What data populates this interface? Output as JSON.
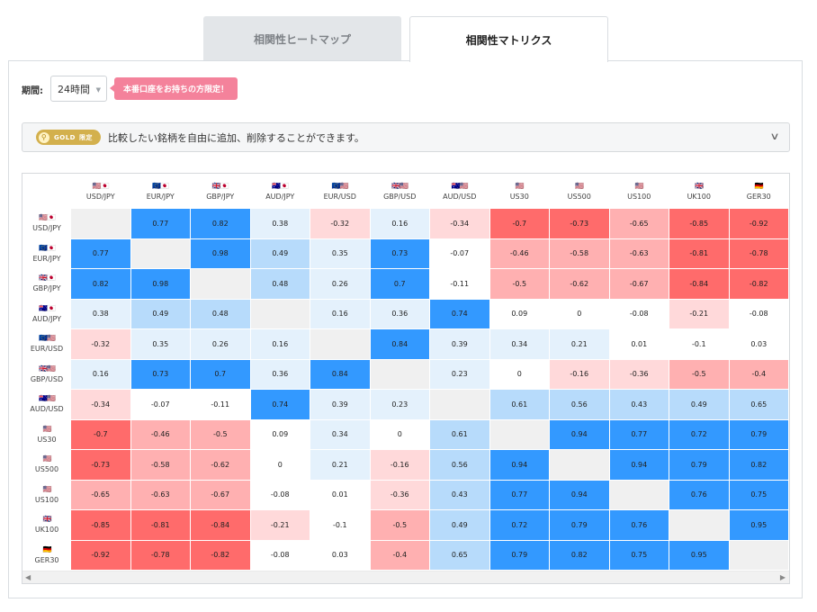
{
  "tabs": [
    {
      "label": "相関性ヒートマップ"
    },
    {
      "label": "相関性マトリクス"
    }
  ],
  "filter": {
    "period_label": "期間:",
    "period_value": "24時間",
    "promo_badge": "本番口座をお持ちの方限定！"
  },
  "gold_notice": {
    "badge_text": "GOLD",
    "badge_limited": "限定",
    "text": "比較したい銘柄を自由に追加、削除することができます。"
  },
  "colors": {
    "positive_strong": "#3399ff",
    "positive_mid": "#b7dbfb",
    "positive_light": "#e4f1fc",
    "neutral": "#ffffff",
    "negative_light": "#ffd9da",
    "negative_mid": "#ffb0b1",
    "negative_strong": "#ff6b6b",
    "diagonal": "#f0f0f0"
  },
  "matrix": {
    "symbols": [
      {
        "label": "USD/JPY",
        "flags": "🇺🇸🇯🇵"
      },
      {
        "label": "EUR/JPY",
        "flags": "🇪🇺🇯🇵"
      },
      {
        "label": "GBP/JPY",
        "flags": "🇬🇧🇯🇵"
      },
      {
        "label": "AUD/JPY",
        "flags": "🇦🇺🇯🇵"
      },
      {
        "label": "EUR/USD",
        "flags": "🇪🇺🇺🇸"
      },
      {
        "label": "GBP/USD",
        "flags": "🇬🇧🇺🇸"
      },
      {
        "label": "AUD/USD",
        "flags": "🇦🇺🇺🇸"
      },
      {
        "label": "US30",
        "flags": "🇺🇸"
      },
      {
        "label": "US500",
        "flags": "🇺🇸"
      },
      {
        "label": "US100",
        "flags": "🇺🇸"
      },
      {
        "label": "UK100",
        "flags": "🇬🇧"
      },
      {
        "label": "GER30",
        "flags": "🇩🇪"
      }
    ],
    "values": [
      [
        null,
        0.77,
        0.82,
        0.38,
        -0.32,
        0.16,
        -0.34,
        -0.7,
        -0.73,
        -0.65,
        -0.85,
        -0.92
      ],
      [
        0.77,
        null,
        0.98,
        0.49,
        0.35,
        0.73,
        -0.07,
        -0.46,
        -0.58,
        -0.63,
        -0.81,
        -0.78
      ],
      [
        0.82,
        0.98,
        null,
        0.48,
        0.26,
        0.7,
        -0.11,
        -0.5,
        -0.62,
        -0.67,
        -0.84,
        -0.82
      ],
      [
        0.38,
        0.49,
        0.48,
        null,
        0.16,
        0.36,
        0.74,
        0.09,
        0,
        -0.08,
        -0.21,
        -0.08
      ],
      [
        -0.32,
        0.35,
        0.26,
        0.16,
        null,
        0.84,
        0.39,
        0.34,
        0.21,
        0.01,
        -0.1,
        0.03
      ],
      [
        0.16,
        0.73,
        0.7,
        0.36,
        0.84,
        null,
        0.23,
        0,
        -0.16,
        -0.36,
        -0.5,
        -0.4
      ],
      [
        -0.34,
        -0.07,
        -0.11,
        0.74,
        0.39,
        0.23,
        null,
        0.61,
        0.56,
        0.43,
        0.49,
        0.65
      ],
      [
        -0.7,
        -0.46,
        -0.5,
        0.09,
        0.34,
        0,
        0.61,
        null,
        0.94,
        0.77,
        0.72,
        0.79
      ],
      [
        -0.73,
        -0.58,
        -0.62,
        0,
        0.21,
        -0.16,
        0.56,
        0.94,
        null,
        0.94,
        0.79,
        0.82
      ],
      [
        -0.65,
        -0.63,
        -0.67,
        -0.08,
        0.01,
        -0.36,
        0.43,
        0.77,
        0.94,
        null,
        0.76,
        0.75
      ],
      [
        -0.85,
        -0.81,
        -0.84,
        -0.21,
        -0.1,
        -0.5,
        0.49,
        0.72,
        0.79,
        0.76,
        null,
        0.95
      ],
      [
        -0.92,
        -0.78,
        -0.82,
        -0.08,
        0.03,
        -0.4,
        0.65,
        0.79,
        0.82,
        0.75,
        0.95,
        null
      ]
    ]
  },
  "scrollbar": {
    "left_arrow": "◀",
    "right_arrow": "▶"
  }
}
